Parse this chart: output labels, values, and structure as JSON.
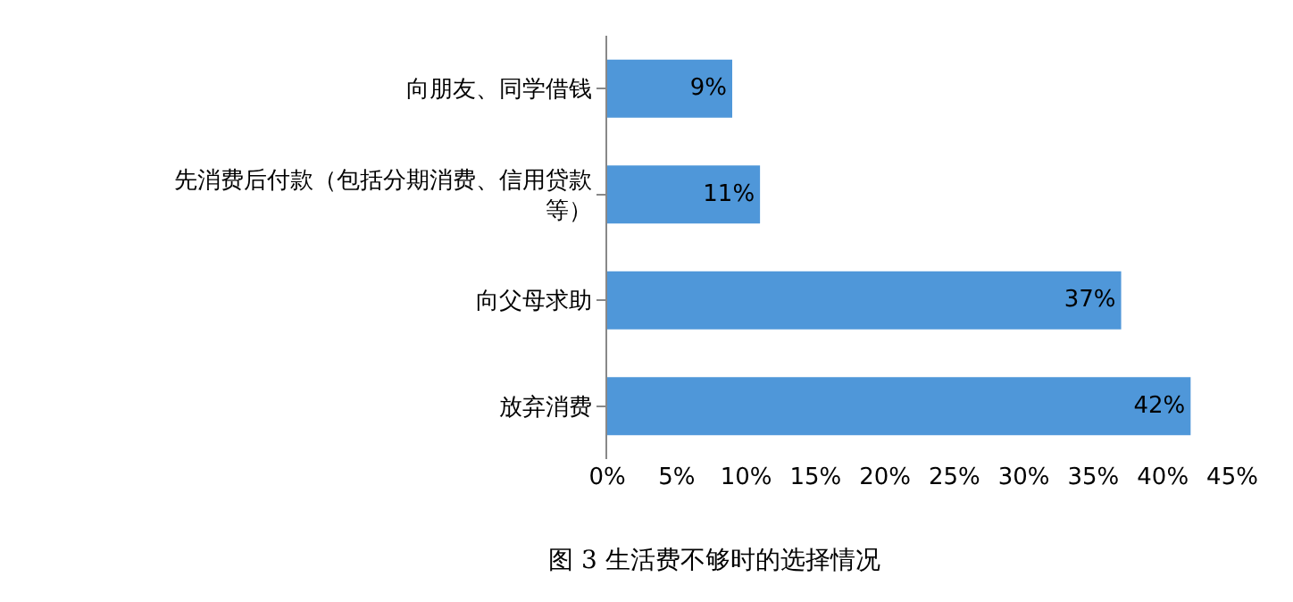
{
  "chart_data": {
    "type": "bar",
    "orientation": "horizontal",
    "title": "图 3 生活费不够时的选择情况",
    "categories": [
      "向朋友、同学借钱",
      "先消费后付款（包括分期消费、信用贷款等）",
      "向父母求助",
      "放弃消费"
    ],
    "values": [
      9,
      11,
      37,
      42
    ],
    "color": "#4f97d9",
    "value_labels": [
      "9%",
      "11%",
      "37%",
      "42%"
    ],
    "xlim": [
      0,
      45
    ],
    "xticks": [
      {
        "value": 0,
        "label": "0%"
      },
      {
        "value": 5,
        "label": "5%"
      },
      {
        "value": 10,
        "label": "10%"
      },
      {
        "value": 15,
        "label": "15%"
      },
      {
        "value": 20,
        "label": "20%"
      },
      {
        "value": 25,
        "label": "25%"
      },
      {
        "value": 30,
        "label": "30%"
      },
      {
        "value": 35,
        "label": "35%"
      },
      {
        "value": 40,
        "label": "40%"
      },
      {
        "value": 45,
        "label": "45%"
      }
    ]
  }
}
